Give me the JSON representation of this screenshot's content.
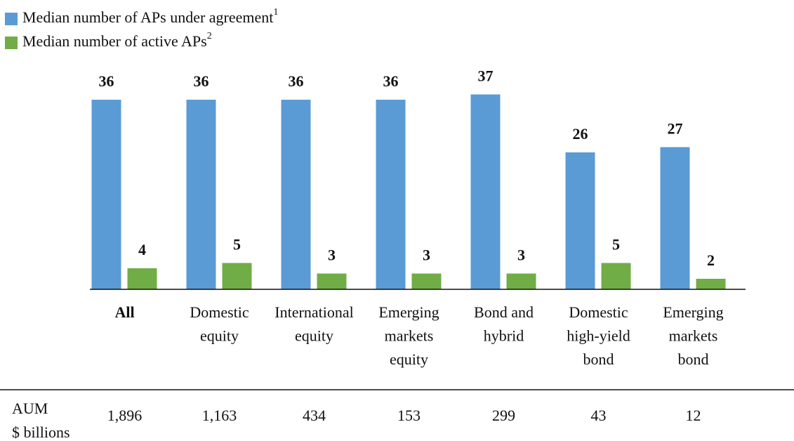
{
  "chart_data": {
    "type": "bar",
    "categories": [
      [
        "All"
      ],
      [
        "Domestic",
        "equity"
      ],
      [
        "International",
        "equity"
      ],
      [
        "Emerging",
        "markets",
        "equity"
      ],
      [
        "Bond and",
        "hybrid"
      ],
      [
        "Domestic",
        "high-yield",
        "bond"
      ],
      [
        "Emerging",
        "markets",
        "bond"
      ]
    ],
    "series": [
      {
        "name": "Median number of APs under agreement",
        "note": "1",
        "color": "#5b9bd5",
        "values": [
          36,
          36,
          36,
          36,
          37,
          26,
          27
        ]
      },
      {
        "name": "Median number of active APs",
        "note": "2",
        "color": "#70ad47",
        "values": [
          4,
          5,
          3,
          3,
          3,
          5,
          2
        ]
      }
    ],
    "ylim": [
      0,
      40
    ],
    "legend": "top-left",
    "aum": {
      "label": [
        "AUM",
        "$ billions"
      ],
      "values": [
        "1,896",
        "1,163",
        "434",
        "153",
        "299",
        "43",
        "12"
      ]
    }
  }
}
